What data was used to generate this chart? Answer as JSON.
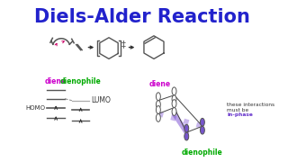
{
  "title": "Diels-Alder Reaction",
  "title_color": "#2222cc",
  "title_fontsize": 15,
  "bg_color": "#ffffff",
  "diene_color": "#cc00cc",
  "dienophile_color": "#00aa00",
  "inphase_color": "#6633cc",
  "label_diene1": "diene",
  "label_dienophile1": "dienophile",
  "label_diene2": "diene",
  "label_dienophile2": "dienophile",
  "label_homo": "HOMO",
  "label_lumo": "LUMO"
}
